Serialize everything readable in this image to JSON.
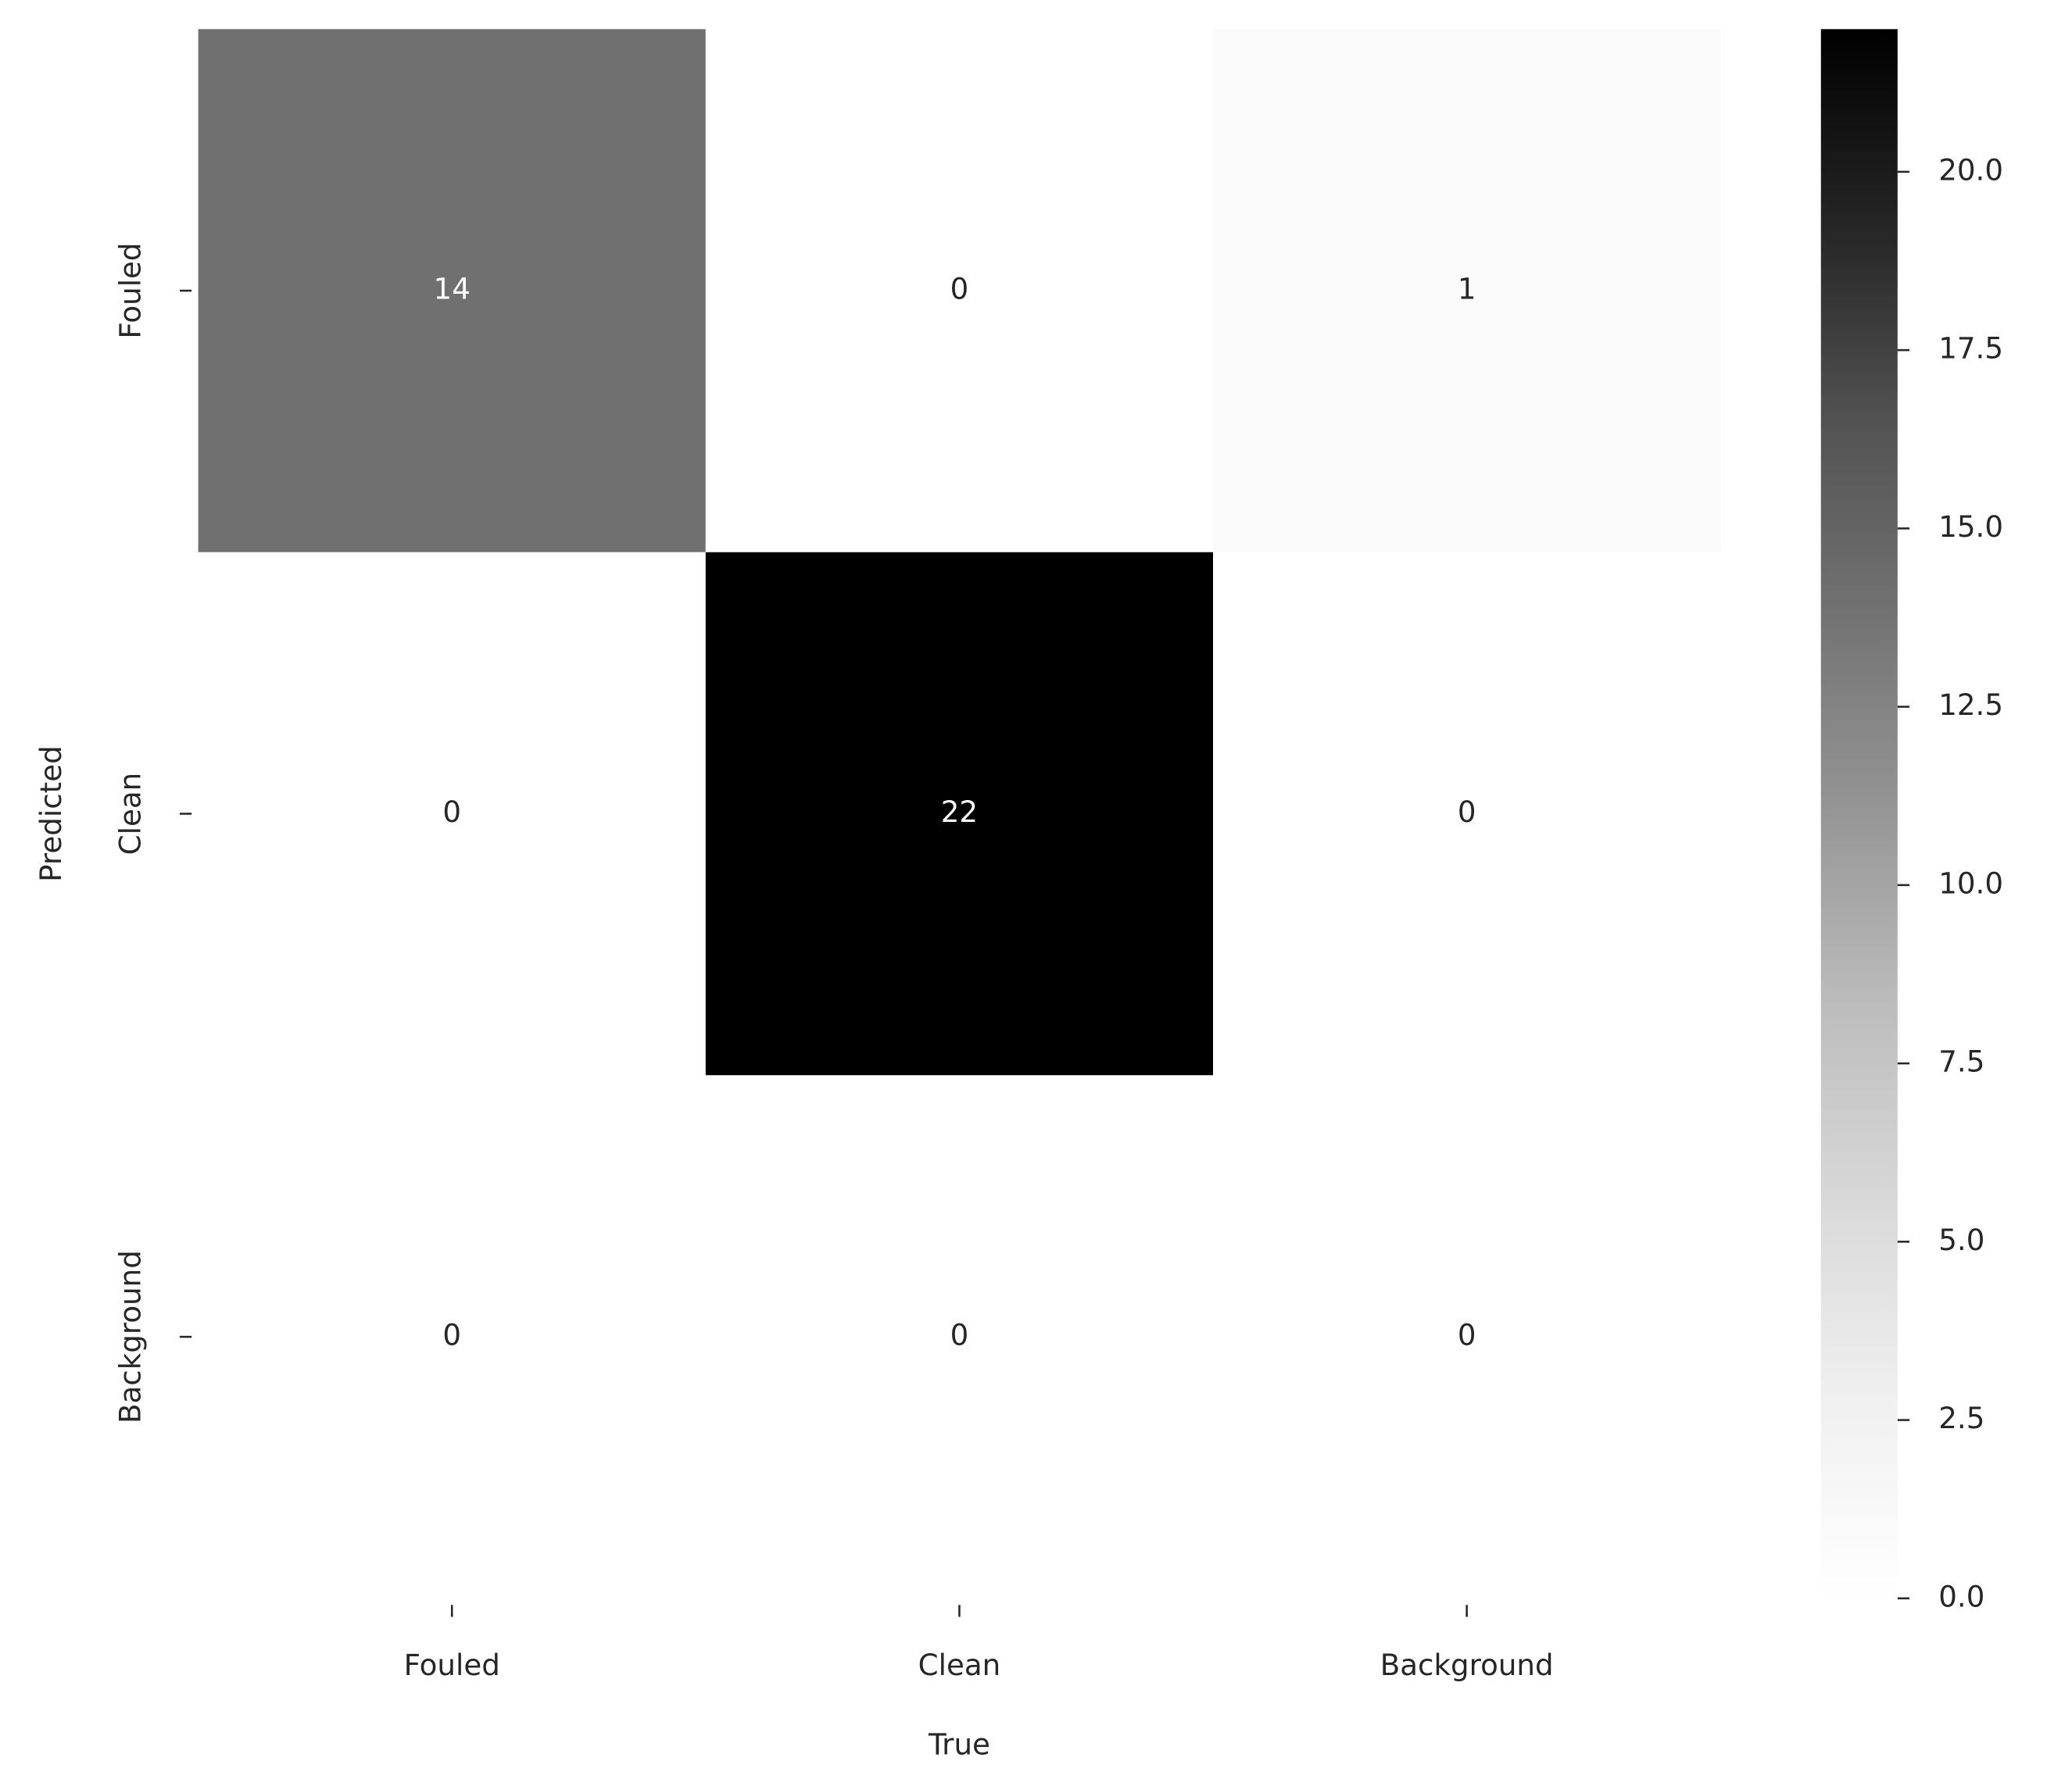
{
  "chart_data": {
    "type": "heatmap",
    "x_label": "True",
    "y_label": "Predicted",
    "x_categories": [
      "Fouled",
      "Clean",
      "Background"
    ],
    "y_categories": [
      "Fouled",
      "Clean",
      "Background"
    ],
    "values": [
      [
        14,
        0,
        1
      ],
      [
        0,
        22,
        0
      ],
      [
        0,
        0,
        0
      ]
    ],
    "clim": [
      0,
      22
    ],
    "colormap": [
      "#ffffff",
      "#f0f0f0",
      "#d9d9d9",
      "#bdbdbd",
      "#969696",
      "#737373",
      "#525252",
      "#252525",
      "#000000"
    ],
    "cticks": [
      {
        "value": 0,
        "label": "0.0"
      },
      {
        "value": 2.5,
        "label": "2.5"
      },
      {
        "value": 5,
        "label": "5.0"
      },
      {
        "value": 7.5,
        "label": "7.5"
      },
      {
        "value": 10,
        "label": "10.0"
      },
      {
        "value": 12.5,
        "label": "12.5"
      },
      {
        "value": 15,
        "label": "15.0"
      },
      {
        "value": 17.5,
        "label": "17.5"
      },
      {
        "value": 20,
        "label": "20.0"
      }
    ]
  }
}
